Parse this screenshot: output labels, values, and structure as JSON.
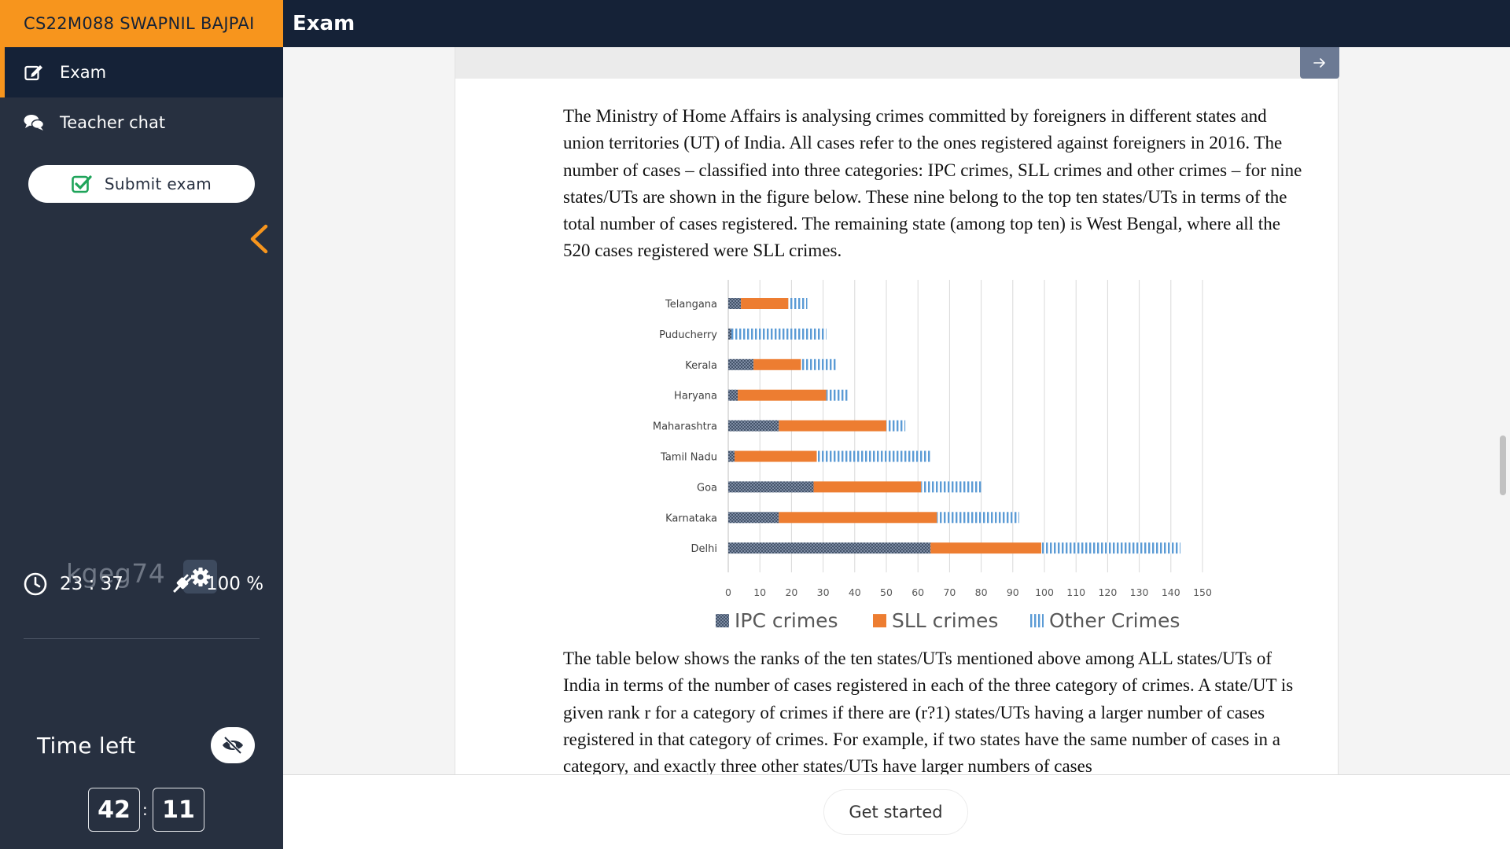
{
  "topbar": {
    "user_label": "CS22M088 SWAPNIL BAJPAI",
    "page_title": "Exam"
  },
  "sidebar": {
    "nav": [
      {
        "label": "Exam",
        "icon": "edit-icon",
        "active": true
      },
      {
        "label": "Teacher chat",
        "icon": "chat-icon",
        "active": false
      }
    ],
    "submit_label": "Submit exam",
    "session_code": "kgeg74",
    "clock": "23 : 37",
    "battery": "100 %",
    "time_left_label": "Time left",
    "time_left_minutes": "42",
    "time_left_seconds": "11"
  },
  "question": {
    "paragraph1": "The Ministry of Home Affairs is analysing crimes committed by foreigners in different states and union territories (UT) of India. All cases refer to the ones registered against foreigners in 2016. The number of cases – classified into three categories: IPC crimes, SLL crimes and other crimes – for nine states/UTs are shown in the figure below. These nine belong to the top ten states/UTs in terms of the total number of cases registered. The remaining state (among top ten) is West Bengal, where all the 520 cases registered were SLL crimes.",
    "paragraph2": "The table below shows the ranks of the ten states/UTs mentioned above among ALL states/UTs of India in terms of the number of cases registered in each of the three category of crimes. A state/UT is given rank r for a category of crimes if there are (r?1) states/UTs having a larger number of cases registered in that category of crimes. For example, if two states have the same number of cases in a category, and exactly three other states/UTs have larger numbers of cases"
  },
  "footer": {
    "get_started_label": "Get started"
  },
  "colors": {
    "accent": "#f7951d",
    "navy": "#152237",
    "sidebar": "#273040",
    "ipc": "#44546a",
    "sll": "#ed7d31",
    "other": "#5b9bd5"
  },
  "chart_data": {
    "type": "bar",
    "orientation": "horizontal",
    "stacked": true,
    "categories": [
      "Telangana",
      "Puducherry",
      "Kerala",
      "Haryana",
      "Maharashtra",
      "Tamil Nadu",
      "Goa",
      "Karnataka",
      "Delhi"
    ],
    "series": [
      {
        "name": "IPC crimes",
        "values": [
          4,
          1,
          8,
          3,
          16,
          2,
          27,
          16,
          64
        ]
      },
      {
        "name": "SLL crimes",
        "values": [
          15,
          0,
          15,
          28,
          34,
          26,
          34,
          50,
          35
        ]
      },
      {
        "name": "Other Crimes",
        "values": [
          6,
          30,
          11,
          7,
          6,
          36,
          19,
          26,
          44
        ]
      }
    ],
    "x_ticks": [
      "0",
      "10",
      "20",
      "30",
      "40",
      "50",
      "60",
      "70",
      "80",
      "90",
      "100",
      "110",
      "120",
      "130",
      "140",
      "150"
    ],
    "xlim": [
      0,
      150
    ],
    "legend": [
      "IPC crimes",
      "SLL crimes",
      "Other Crimes"
    ],
    "legend_position": "bottom",
    "grid": true
  }
}
